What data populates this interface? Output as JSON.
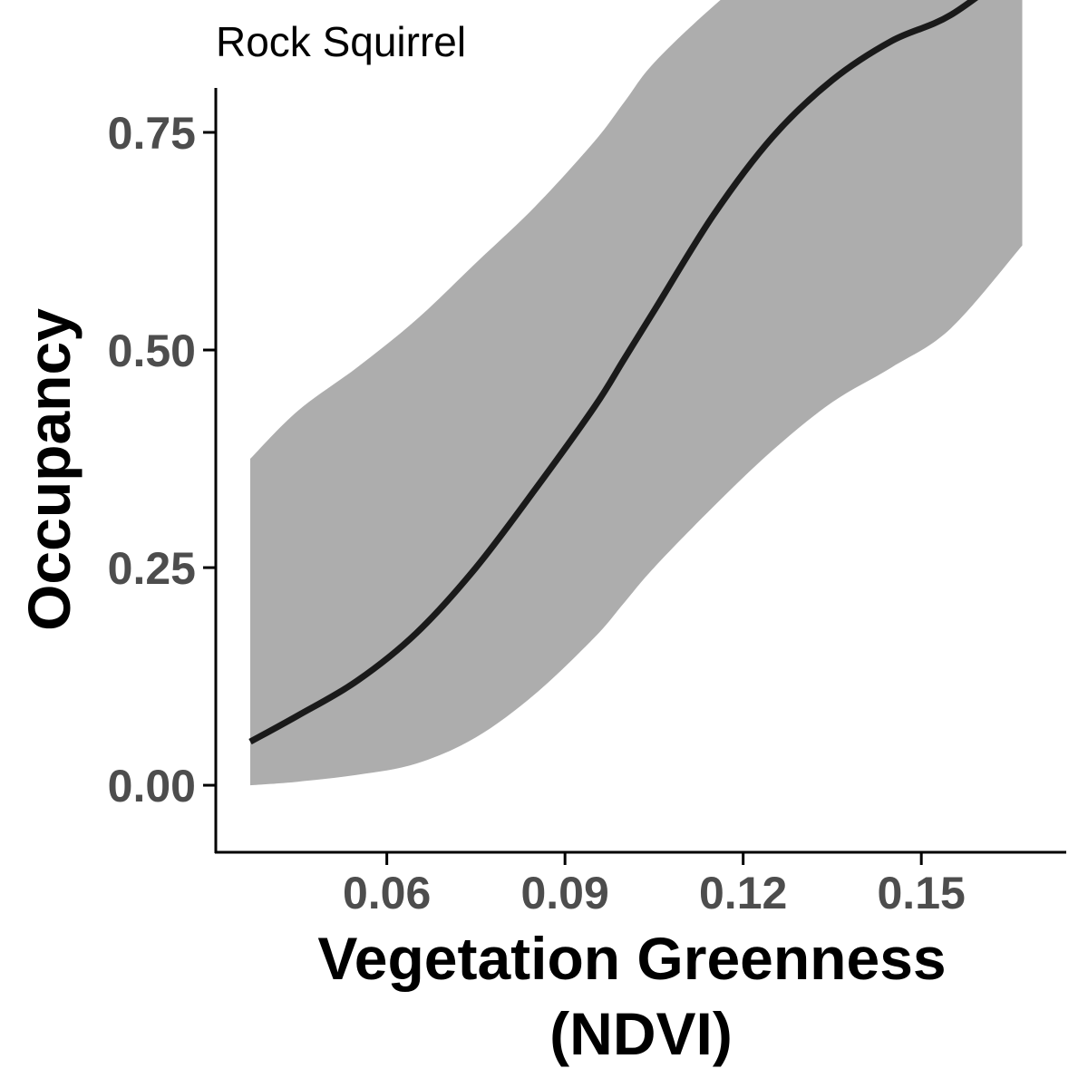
{
  "chart_data": {
    "type": "line",
    "title": "Rock Squirrel",
    "xlabel": "Vegetation Greenness",
    "xlabel_line2": "(NDVI)",
    "ylabel": "Occupancy",
    "xlim": [
      0.0312,
      0.1744
    ],
    "ylim": [
      -0.077,
      1.677
    ],
    "x_ticks": [
      0.06,
      0.09,
      0.12,
      0.15
    ],
    "x_tick_labels": [
      "0.06",
      "0.09",
      "0.12",
      "0.15"
    ],
    "y_ticks": [
      0.0,
      0.25,
      0.5,
      0.75
    ],
    "y_tick_labels": [
      "0.00",
      "0.25",
      "0.50",
      "0.75"
    ],
    "grid": false,
    "line_color": "#1a1a1a",
    "ribbon_color": "#adadad",
    "series": [
      {
        "x": [
          0.037,
          0.045,
          0.055,
          0.065,
          0.075,
          0.085,
          0.095,
          0.1,
          0.105,
          0.115,
          0.125,
          0.135,
          0.145,
          0.155,
          0.167
        ],
        "y": [
          0.05,
          0.08,
          0.12,
          0.175,
          0.25,
          0.34,
          0.435,
          0.49,
          0.545,
          0.655,
          0.745,
          0.81,
          0.855,
          0.885,
          0.945
        ],
        "lower": [
          0.0,
          0.004,
          0.012,
          0.025,
          0.055,
          0.105,
          0.17,
          0.21,
          0.25,
          0.32,
          0.385,
          0.44,
          0.48,
          0.525,
          0.62
        ],
        "upper": [
          0.375,
          0.43,
          0.48,
          0.535,
          0.6,
          0.665,
          0.74,
          0.785,
          0.83,
          0.895,
          0.95,
          0.98,
          0.99,
          0.995,
          0.995
        ]
      }
    ]
  }
}
